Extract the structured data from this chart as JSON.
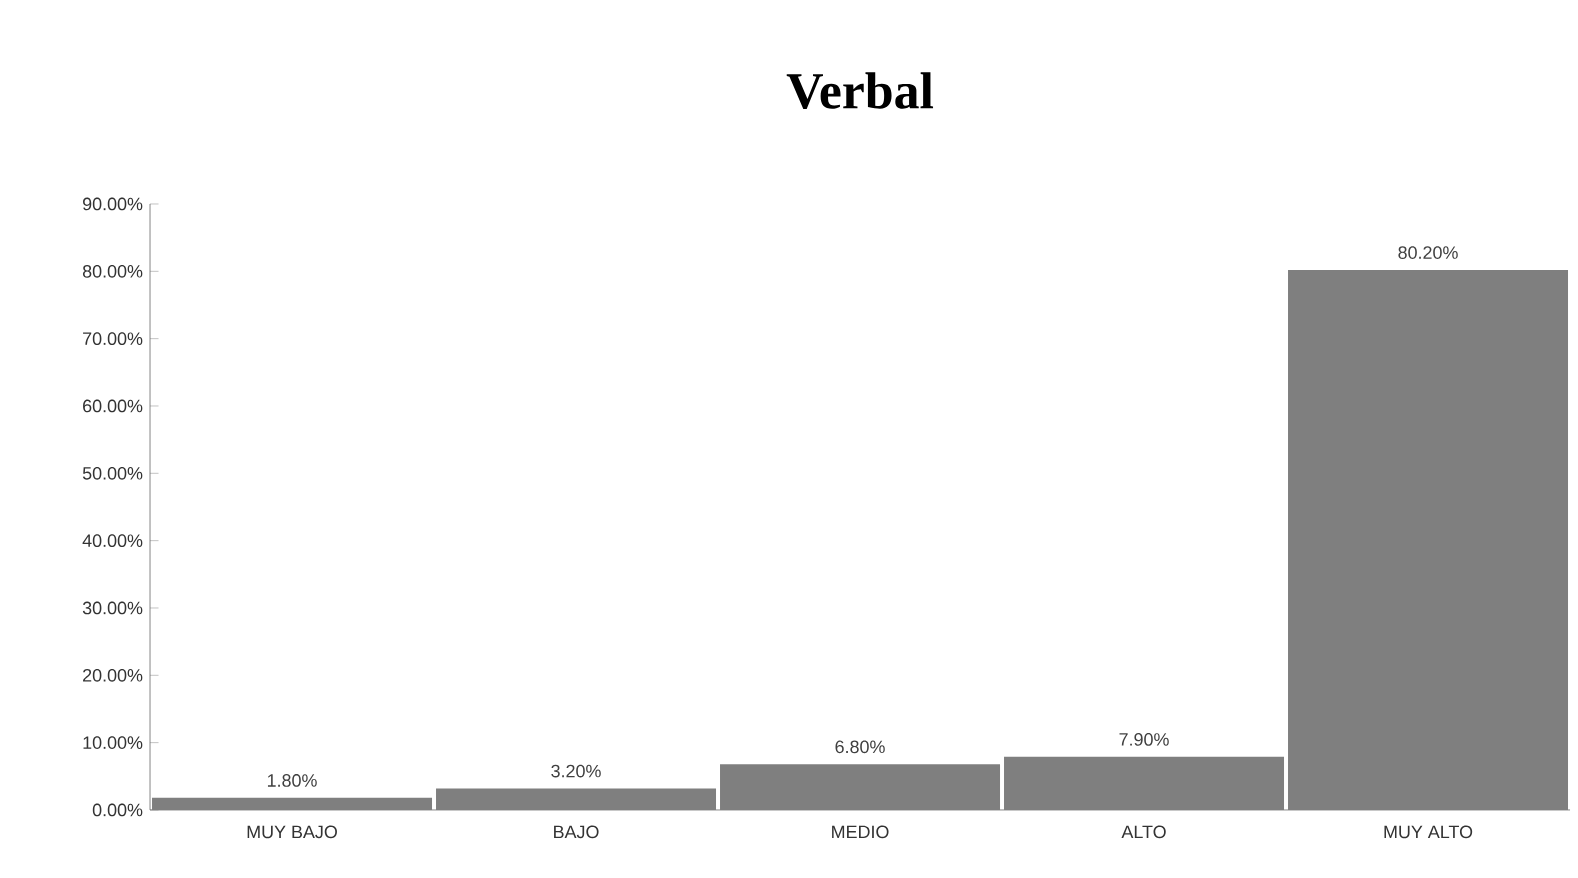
{
  "chart_data": {
    "type": "bar",
    "title": "Verbal",
    "categories": [
      "MUY BAJO",
      "BAJO",
      "MEDIO",
      "ALTO",
      "MUY ALTO"
    ],
    "values": [
      1.8,
      3.2,
      6.8,
      7.9,
      80.2
    ],
    "value_labels": [
      "1.80%",
      "3.20%",
      "6.80%",
      "7.90%",
      "80.20%"
    ],
    "color": "#7f7f7f",
    "ylim": [
      0,
      90
    ],
    "yticks": [
      {
        "value": 0,
        "label": "0.00%"
      },
      {
        "value": 10,
        "label": "10.00%"
      },
      {
        "value": 20,
        "label": "20.00%"
      },
      {
        "value": 30,
        "label": "30.00%"
      },
      {
        "value": 40,
        "label": "40.00%"
      },
      {
        "value": 50,
        "label": "50.00%"
      },
      {
        "value": 60,
        "label": "60.00%"
      },
      {
        "value": 70,
        "label": "70.00%"
      },
      {
        "value": 80,
        "label": "80.00%"
      },
      {
        "value": 90,
        "label": "90.00%"
      }
    ],
    "grid": false
  }
}
